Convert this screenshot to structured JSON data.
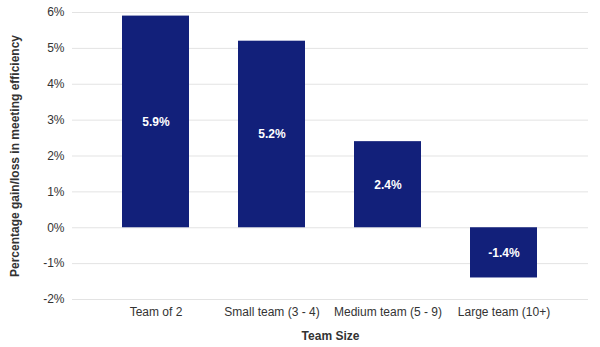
{
  "chart_data": {
    "type": "bar",
    "xlabel": "Team Size",
    "ylabel": "Percentage gain/loss in meeting efficiency",
    "categories": [
      "Team of 2",
      "Small team (3 - 4)",
      "Medium team (5 - 9)",
      "Large team (10+)"
    ],
    "values": [
      5.9,
      5.2,
      2.4,
      -1.4
    ],
    "value_labels": [
      "5.9%",
      "5.2%",
      "2.4%",
      "-1.4%"
    ],
    "color": "#12207a",
    "ylim": [
      -2,
      6
    ],
    "yticks": [
      {
        "value": -2,
        "label": "-2%"
      },
      {
        "value": -1,
        "label": "-1%"
      },
      {
        "value": 0,
        "label": "0%"
      },
      {
        "value": 1,
        "label": "1%"
      },
      {
        "value": 2,
        "label": "2%"
      },
      {
        "value": 3,
        "label": "3%"
      },
      {
        "value": 4,
        "label": "4%"
      },
      {
        "value": 5,
        "label": "5%"
      },
      {
        "value": 6,
        "label": "6%"
      }
    ],
    "grid": true,
    "data_labels": true
  }
}
